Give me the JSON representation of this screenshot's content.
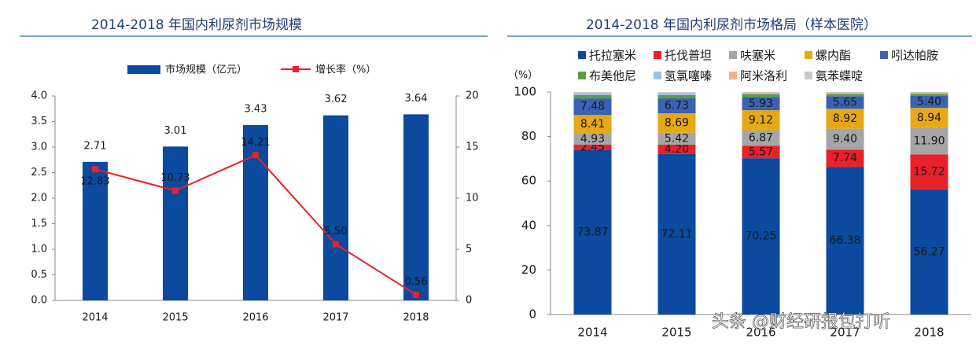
{
  "chart_data": [
    {
      "type": "combo",
      "title": "2014-2018 年国内利尿剂市场规模",
      "categories": [
        "2014",
        "2015",
        "2016",
        "2017",
        "2018"
      ],
      "series": [
        {
          "name": "市场规模（亿元）",
          "type": "bar",
          "color": "#0b4a9e",
          "values": [
            2.71,
            3.01,
            3.43,
            3.62,
            3.64
          ]
        },
        {
          "name": "增长率（%）",
          "type": "line",
          "axis": "y2",
          "color": "#e8212b",
          "values": [
            12.83,
            10.73,
            14.21,
            5.5,
            0.56
          ],
          "value_labels": [
            "12.83",
            "10.73",
            "14.21",
            "5.50",
            "0.56"
          ]
        }
      ],
      "ylim": [
        0,
        4
      ],
      "yticks": [
        {
          "value": 0,
          "label": "0.0"
        },
        {
          "value": 0.5,
          "label": "0.5"
        },
        {
          "value": 1,
          "label": "1.0"
        },
        {
          "value": 1.5,
          "label": "1.5"
        },
        {
          "value": 2,
          "label": "2.0"
        },
        {
          "value": 2.5,
          "label": "2.5"
        },
        {
          "value": 3,
          "label": "3.0"
        },
        {
          "value": 3.5,
          "label": "3.5"
        },
        {
          "value": 4,
          "label": "4.0"
        }
      ],
      "y2lim": [
        0,
        20
      ],
      "y2ticks": [
        0,
        5,
        10,
        15,
        20
      ]
    },
    {
      "type": "stacked_bar",
      "title": "2014-2018 年国内利尿剂市场格局（样本医院）",
      "y_label": "（%）",
      "categories": [
        "2014",
        "2015",
        "2016",
        "2017",
        "2018"
      ],
      "series": [
        {
          "name": "托拉塞米",
          "color": "#0b4a9e",
          "values": [
            73.87,
            72.11,
            70.25,
            66.38,
            56.27
          ]
        },
        {
          "name": "托伐普坦",
          "color": "#e8212b",
          "values": [
            2.45,
            4.2,
            5.57,
            7.74,
            15.72
          ],
          "value_labels": [
            "2.45",
            "4.20",
            "5.57",
            "7.74",
            "15.72"
          ]
        },
        {
          "name": "呋塞米",
          "color": "#a5a5a5",
          "values": [
            4.93,
            5.42,
            6.87,
            9.4,
            11.9
          ],
          "value_labels": [
            "4.93",
            "5.42",
            "6.87",
            "9.40",
            "11.90"
          ]
        },
        {
          "name": "螺内酯",
          "color": "#e6a817",
          "values": [
            8.41,
            8.69,
            9.12,
            8.92,
            8.94
          ]
        },
        {
          "name": "吲达帕胺",
          "color": "#3a62b3",
          "values": [
            7.48,
            6.73,
            5.93,
            5.65,
            5.4
          ],
          "value_labels": [
            "7.48",
            "6.73",
            "5.93",
            "5.65",
            "5.40"
          ]
        },
        {
          "name": "布美他尼",
          "color": "#5c9e3c",
          "values": [
            1.5,
            1.5,
            1.2,
            1.0,
            0.9
          ]
        },
        {
          "name": "氢氯噻嗪",
          "color": "#9dc3e6",
          "values": [
            0.8,
            0.8,
            0.6,
            0.5,
            0.5
          ]
        },
        {
          "name": "阿米洛利",
          "color": "#f4b183",
          "values": [
            0.3,
            0.3,
            0.3,
            0.2,
            0.2
          ]
        },
        {
          "name": "氨苯蝶啶",
          "color": "#c9c9c9",
          "values": [
            0.26,
            0.25,
            0.16,
            0.21,
            0.17
          ]
        }
      ],
      "ylim": [
        0,
        100
      ],
      "yticks": [
        0,
        20,
        40,
        60,
        80,
        100
      ]
    }
  ],
  "watermark": "头条 @财经研报包打听"
}
